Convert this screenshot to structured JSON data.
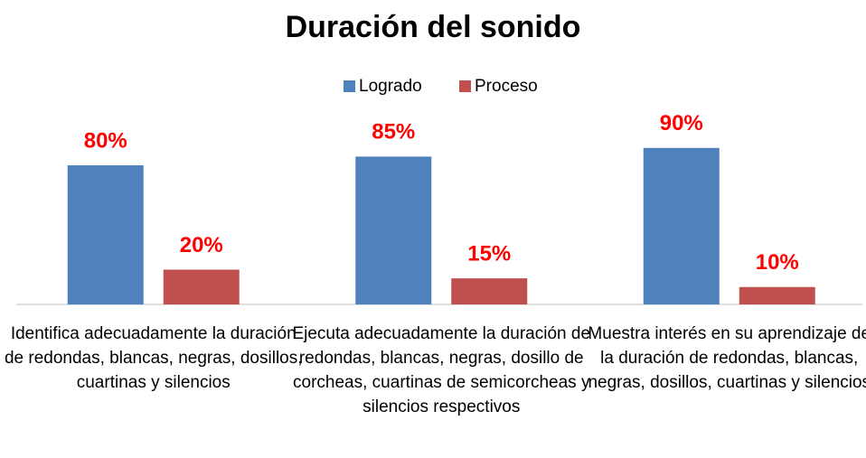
{
  "chart_data": {
    "type": "bar",
    "title": "Duración del sonido",
    "categories": [
      "Identifica adecuadamente la duración de redondas, blancas, negras, dosillos, cuartinas y silencios",
      "Ejecuta adecuadamente la duración de redondas, blancas, negras, dosillo de corcheas, cuartinas de semicorcheas y silencios respectivos",
      "Muestra interés en su aprendizaje de la duración de redondas, blancas, negras, dosillos, cuartinas y silencios"
    ],
    "series": [
      {
        "name": "Logrado",
        "color": "#4f81bd",
        "values": [
          80,
          85,
          90
        ],
        "value_labels": [
          "80%",
          "85%",
          "90%"
        ]
      },
      {
        "name": "Proceso",
        "color": "#c0504d",
        "values": [
          20,
          15,
          10
        ],
        "value_labels": [
          "20%",
          "15%",
          "10%"
        ]
      }
    ],
    "ylim": [
      0,
      100
    ],
    "legend": "top",
    "label_color": "#ff0000"
  }
}
